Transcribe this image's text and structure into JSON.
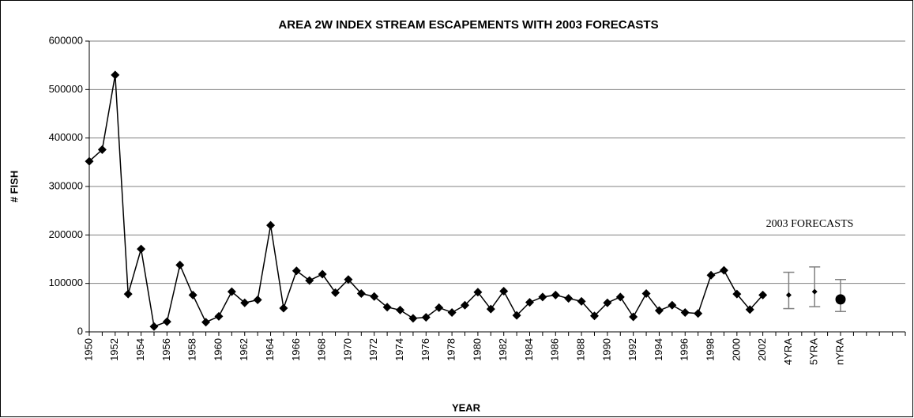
{
  "chart_data": {
    "type": "line",
    "title": "AREA 2W INDEX STREAM ESCAPEMENTS WITH 2003 FORECASTS",
    "x_label": "YEAR",
    "y_label": "# FISH",
    "annotation": "2003 FORECASTS",
    "categories": [
      "1950",
      null,
      "1952",
      null,
      "1954",
      null,
      "1956",
      null,
      "1958",
      null,
      "1960",
      null,
      "1962",
      null,
      "1964",
      null,
      "1966",
      null,
      "1968",
      null,
      "1970",
      null,
      "1972",
      null,
      "1974",
      null,
      "1976",
      null,
      "1978",
      null,
      "1980",
      null,
      "1982",
      null,
      "1984",
      null,
      "1986",
      null,
      "1988",
      null,
      "1990",
      null,
      "1992",
      null,
      "1994",
      null,
      "1996",
      null,
      "1998",
      null,
      "2000",
      null,
      "2002",
      null,
      "4YRA",
      null,
      "5YRA",
      null,
      "nYRA",
      null,
      null,
      null,
      null,
      null
    ],
    "series": [
      {
        "color": "#000000",
        "values": [
          352000,
          376000,
          530000,
          78000,
          171000,
          11000,
          21000,
          138000,
          76000,
          20000,
          32000,
          83000,
          60000,
          66000,
          220000,
          49000,
          126000,
          106000,
          119000,
          81000,
          108000,
          79000,
          73000,
          51000,
          45000,
          28000,
          30000,
          50000,
          40000,
          55000,
          82000,
          47000,
          84000,
          34000,
          61000,
          72000,
          76000,
          69000,
          63000,
          33000,
          60000,
          72000,
          31000,
          79000,
          44000,
          55000,
          40000,
          38000,
          117000,
          127000,
          78000,
          46000,
          76000,
          null,
          null,
          null,
          null,
          null,
          null,
          null,
          null,
          null,
          null,
          null
        ]
      }
    ],
    "forecast": {
      "color": "#000000",
      "error_color": "#808080",
      "values": [
        null,
        null,
        null,
        null,
        null,
        null,
        null,
        null,
        null,
        null,
        null,
        null,
        null,
        null,
        null,
        null,
        null,
        null,
        null,
        null,
        null,
        null,
        null,
        null,
        null,
        null,
        null,
        null,
        null,
        null,
        null,
        null,
        null,
        null,
        null,
        null,
        null,
        null,
        null,
        null,
        null,
        null,
        null,
        null,
        null,
        null,
        null,
        null,
        null,
        null,
        null,
        null,
        null,
        null,
        76000,
        null,
        83000,
        null,
        67000,
        null,
        null,
        null,
        null,
        null
      ],
      "low": [
        null,
        null,
        null,
        null,
        null,
        null,
        null,
        null,
        null,
        null,
        null,
        null,
        null,
        null,
        null,
        null,
        null,
        null,
        null,
        null,
        null,
        null,
        null,
        null,
        null,
        null,
        null,
        null,
        null,
        null,
        null,
        null,
        null,
        null,
        null,
        null,
        null,
        null,
        null,
        null,
        null,
        null,
        null,
        null,
        null,
        null,
        null,
        null,
        null,
        null,
        null,
        null,
        null,
        null,
        48000,
        null,
        52000,
        null,
        42000,
        null,
        null,
        null,
        null,
        null
      ],
      "high": [
        null,
        null,
        null,
        null,
        null,
        null,
        null,
        null,
        null,
        null,
        null,
        null,
        null,
        null,
        null,
        null,
        null,
        null,
        null,
        null,
        null,
        null,
        null,
        null,
        null,
        null,
        null,
        null,
        null,
        null,
        null,
        null,
        null,
        null,
        null,
        null,
        null,
        null,
        null,
        null,
        null,
        null,
        null,
        null,
        null,
        null,
        null,
        null,
        null,
        null,
        null,
        null,
        null,
        null,
        123000,
        null,
        134000,
        null,
        108000,
        null,
        null,
        null,
        null,
        null
      ]
    },
    "ylim": [
      0,
      600000
    ],
    "yticks": [
      0,
      100000,
      200000,
      300000,
      400000,
      500000,
      600000
    ],
    "grid": true
  }
}
